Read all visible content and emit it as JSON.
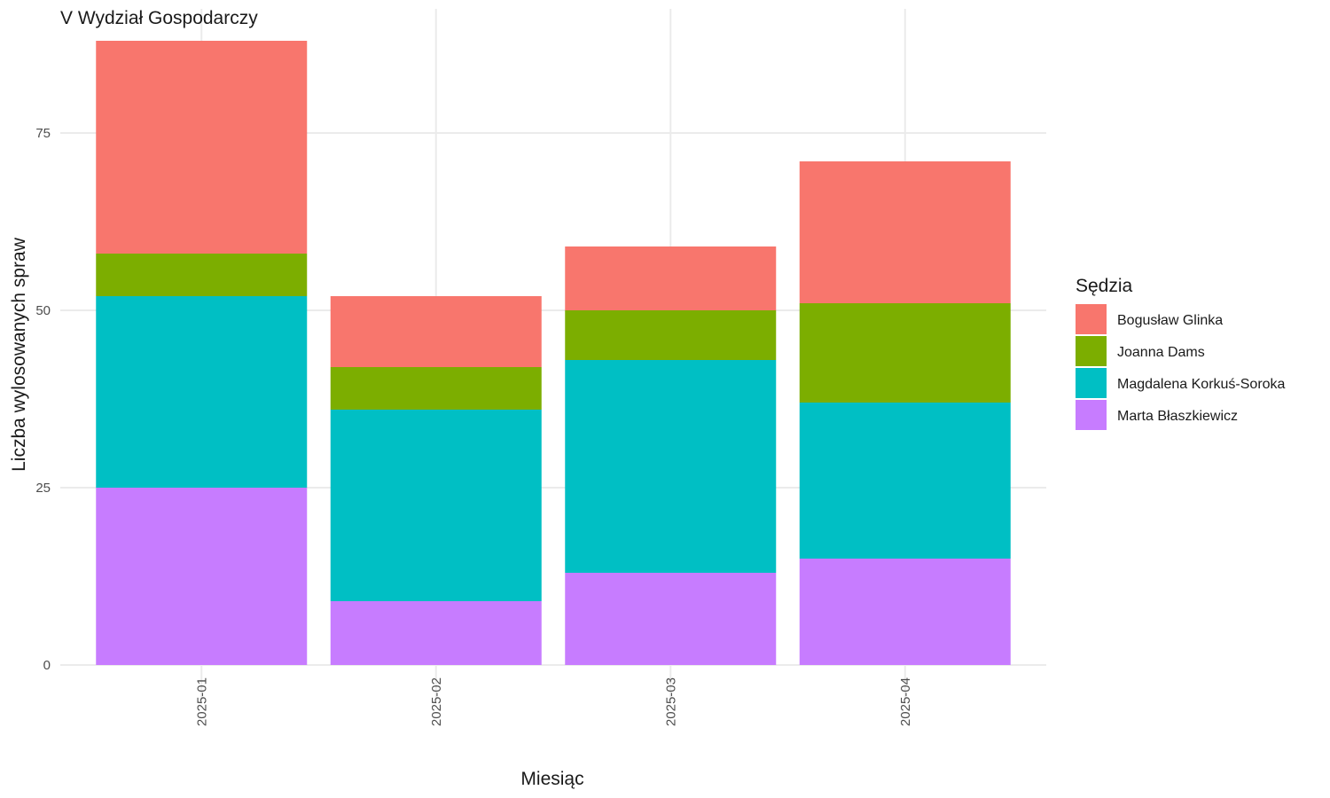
{
  "chart_data": {
    "type": "bar",
    "stacked": true,
    "title": "V Wydział Gospodarczy",
    "xlabel": "Miesiąc",
    "ylabel": "Liczba wylosowanych spraw",
    "categories": [
      "2025-01",
      "2025-02",
      "2025-03",
      "2025-04"
    ],
    "ylim": [
      0,
      88
    ],
    "yticks": [
      0,
      25,
      50,
      75
    ],
    "grid": true,
    "legend": {
      "title": "Sędzia",
      "position": "right"
    },
    "series": [
      {
        "name": "Marta Błaszkiewicz",
        "color": "#C77CFF",
        "values": [
          25,
          9,
          13,
          15
        ]
      },
      {
        "name": "Magdalena Korkuś-Soroka",
        "color": "#00BFC4",
        "values": [
          27,
          27,
          30,
          22
        ]
      },
      {
        "name": "Joanna Dams",
        "color": "#7CAE00",
        "values": [
          6,
          6,
          7,
          14
        ]
      },
      {
        "name": "Bogusław Glinka",
        "color": "#F8766D",
        "values": [
          30,
          10,
          9,
          20
        ]
      }
    ],
    "legend_order": [
      "Bogusław Glinka",
      "Joanna Dams",
      "Magdalena Korkuś-Soroka",
      "Marta Błaszkiewicz"
    ]
  }
}
